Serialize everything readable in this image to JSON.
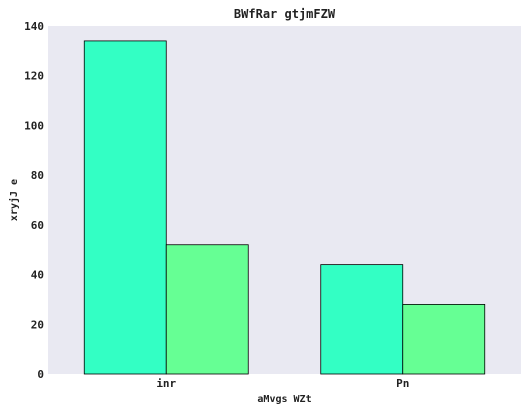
{
  "chart_data": {
    "type": "bar",
    "title": "BWfRar gtjmFZW",
    "xlabel": "aMvgs WZt",
    "ylabel": "xryjJ e",
    "categories": [
      "inr",
      "Pn"
    ],
    "series": [
      {
        "values": [
          134,
          44
        ]
      },
      {
        "values": [
          52,
          28
        ]
      }
    ],
    "ylim": [
      0,
      140
    ],
    "yticks": [
      0,
      20,
      40,
      60,
      80,
      100,
      120,
      140
    ],
    "grid": false,
    "colors": {
      "plot_background": "#e9e9f2",
      "series": [
        "#33ffc4",
        "#66ff94"
      ],
      "bar_edge": "#000000"
    }
  }
}
